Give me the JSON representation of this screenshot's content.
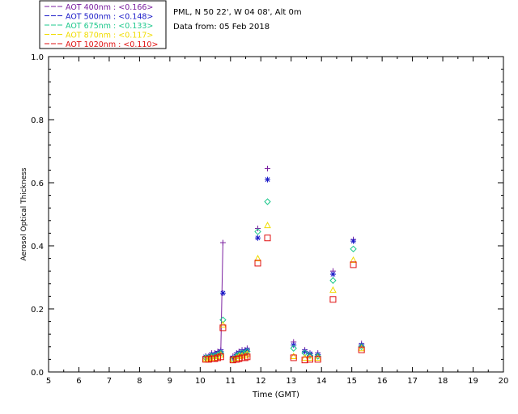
{
  "header": {
    "site": "PML, N 50 22', W 04 08', Alt 0m",
    "date_line": "Data from: 05 Feb 2018"
  },
  "legend": [
    {
      "label": "AOT  400nm : <0.166>",
      "color": "#7a1fa0",
      "marker": "plus"
    },
    {
      "label": "AOT  500nm : <0.148>",
      "color": "#1a1ac8",
      "marker": "asterisk"
    },
    {
      "label": "AOT  675nm : <0.133>",
      "color": "#1ec88c",
      "marker": "diamond"
    },
    {
      "label": "AOT  870nm : <0.117>",
      "color": "#f0dc00",
      "marker": "triangle"
    },
    {
      "label": "AOT 1020nm : <0.110>",
      "color": "#e01010",
      "marker": "square"
    }
  ],
  "chart_data": {
    "type": "scatter",
    "title": "PML, N 50 22', W 04 08', Alt 0m",
    "subtitle": "Data from: 05 Feb 2018",
    "xlabel": "Time (GMT)",
    "ylabel": "Aerosol Optical Thickness",
    "xlim": [
      5,
      20
    ],
    "ylim": [
      0.0,
      1.0
    ],
    "xticks": [
      5,
      6,
      7,
      8,
      9,
      10,
      11,
      12,
      13,
      14,
      15,
      16,
      17,
      18,
      19,
      20
    ],
    "yticks": [
      0.0,
      0.2,
      0.4,
      0.6,
      0.8,
      1.0
    ],
    "legend_position": "top-left, outside plot",
    "x": [
      10.18,
      10.28,
      10.38,
      10.48,
      10.58,
      10.68,
      10.75,
      11.08,
      11.2,
      11.28,
      11.38,
      11.48,
      11.55,
      11.9,
      12.22,
      13.08,
      13.45,
      13.62,
      13.88,
      14.38,
      15.05,
      15.32
    ],
    "series": [
      {
        "name": "AOT  400nm : <0.166>",
        "line_until_index": 6,
        "values": [
          0.05,
          0.05,
          0.06,
          0.06,
          0.065,
          0.07,
          0.41,
          0.05,
          0.06,
          0.065,
          0.07,
          0.07,
          0.075,
          0.455,
          0.645,
          0.095,
          0.07,
          0.06,
          0.06,
          0.32,
          0.42,
          0.09
        ]
      },
      {
        "name": "AOT  500nm : <0.148>",
        "line_until_index": -1,
        "values": [
          0.048,
          0.048,
          0.055,
          0.055,
          0.06,
          0.065,
          0.25,
          0.045,
          0.055,
          0.06,
          0.065,
          0.065,
          0.07,
          0.425,
          0.61,
          0.085,
          0.065,
          0.058,
          0.055,
          0.31,
          0.415,
          0.085
        ]
      },
      {
        "name": "AOT  675nm : <0.133>",
        "line_until_index": -1,
        "values": [
          0.045,
          0.045,
          0.05,
          0.05,
          0.055,
          0.06,
          0.165,
          0.04,
          0.05,
          0.055,
          0.06,
          0.06,
          0.065,
          0.445,
          0.54,
          0.075,
          0.06,
          0.052,
          0.05,
          0.29,
          0.39,
          0.08
        ]
      },
      {
        "name": "AOT  870nm : <0.117>",
        "line_until_index": -1,
        "values": [
          0.042,
          0.042,
          0.045,
          0.045,
          0.05,
          0.055,
          0.15,
          0.04,
          0.045,
          0.05,
          0.052,
          0.052,
          0.058,
          0.36,
          0.465,
          0.05,
          0.045,
          0.045,
          0.045,
          0.26,
          0.355,
          0.075
        ]
      },
      {
        "name": "AOT 1020nm : <0.110>",
        "line_until_index": -1,
        "values": [
          0.04,
          0.04,
          0.042,
          0.042,
          0.045,
          0.048,
          0.14,
          0.038,
          0.04,
          0.042,
          0.045,
          0.045,
          0.048,
          0.345,
          0.425,
          0.045,
          0.038,
          0.04,
          0.04,
          0.23,
          0.34,
          0.07
        ]
      }
    ]
  }
}
